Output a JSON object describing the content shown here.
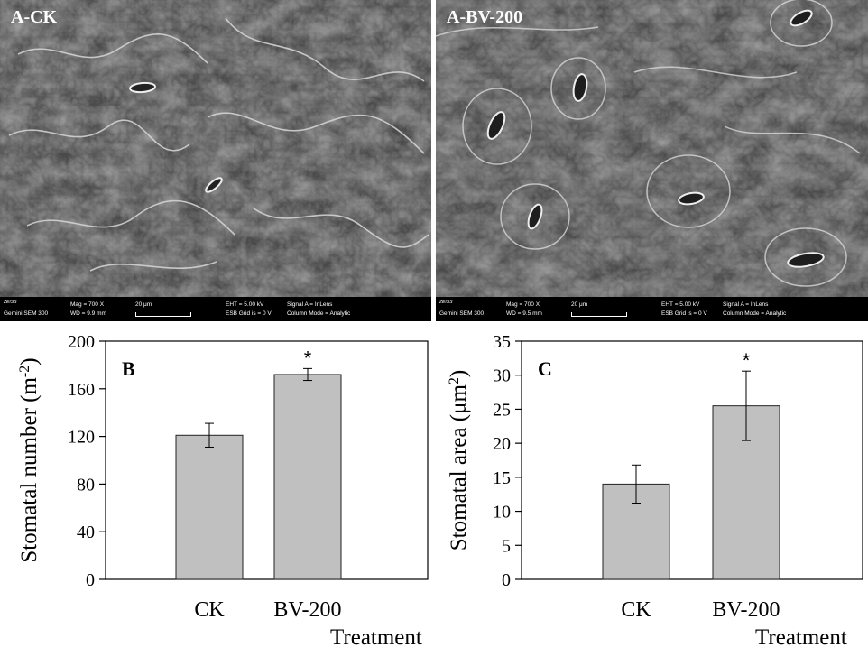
{
  "sem_panels": [
    {
      "label": "A-CK",
      "databar": {
        "logo": "ZEISS",
        "instrument": "Gemini SEM 300",
        "mag": "Mag =  700 X",
        "wd": "WD = 9.9 mm",
        "scale": "20 μm",
        "eht": "EHT = 5.00 kV",
        "esb": "ESB Grid is =    0 V",
        "signal": "Signal A = InLens",
        "column": "Column Mode = Analytic"
      }
    },
    {
      "label": "A-BV-200",
      "databar": {
        "logo": "ZEISS",
        "instrument": "Gemini SEM 300",
        "mag": "Mag =  700 X",
        "wd": "WD = 9.5 mm",
        "scale": "20 μm",
        "eht": "EHT = 5.00 kV",
        "esb": "ESB Grid is =    0 V",
        "signal": "Signal A = InLens",
        "column": "Column Mode = Analytic"
      }
    }
  ],
  "colors": {
    "bar_fill": "#c0c0c0",
    "bar_stroke": "#222222",
    "sem_bg": "#4a4a4a"
  },
  "chart_data": [
    {
      "type": "bar",
      "panel_label": "B",
      "categories": [
        "CK",
        "BV-200"
      ],
      "values": [
        121,
        172
      ],
      "errors": [
        10,
        5
      ],
      "significance": [
        "",
        "*"
      ],
      "ylabel": "Stomatal number (m",
      "ylabel_sup": "-2",
      "ylabel_end": ")",
      "xlabel": "Treatment",
      "ylim": [
        0,
        200
      ],
      "yticks": [
        0,
        40,
        80,
        120,
        160,
        200
      ]
    },
    {
      "type": "bar",
      "panel_label": "C",
      "categories": [
        "CK",
        "BV-200"
      ],
      "values": [
        14,
        25.5
      ],
      "errors": [
        2.8,
        5.1
      ],
      "significance": [
        "",
        "*"
      ],
      "ylabel": "Stomatal area (μm",
      "ylabel_sup": "2",
      "ylabel_end": ")",
      "xlabel": "Treatment",
      "ylim": [
        0,
        35
      ],
      "yticks": [
        0,
        5,
        10,
        15,
        20,
        25,
        30,
        35
      ]
    }
  ]
}
